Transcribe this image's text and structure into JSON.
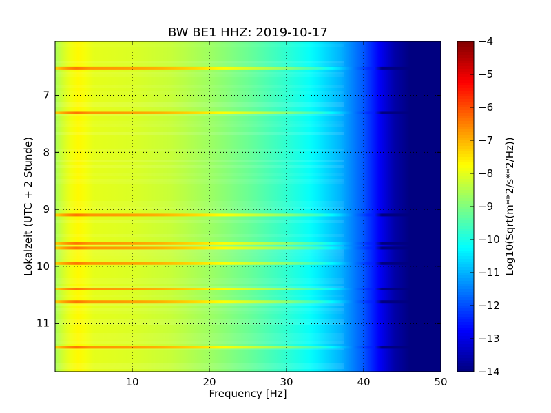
{
  "chart_data": {
    "type": "heatmap",
    "title": "BW BE1 HHZ: 2019-10-17",
    "xlabel": "Frequency [Hz]",
    "ylabel": "Lokalzeit (UTC + 2 Stunde)",
    "colorbar_label": "Log10(Sqrt(m**2/s**2/Hz))",
    "x_range": [
      0,
      50
    ],
    "y_range": [
      6.05,
      11.85
    ],
    "y_inverted": true,
    "clim": [
      -14,
      -4
    ],
    "colormap": "jet",
    "grid": true,
    "x_ticks": [
      10,
      20,
      30,
      40,
      50
    ],
    "y_ticks": [
      7,
      8,
      9,
      10,
      11
    ],
    "colorbar_ticks": [
      -4,
      -5,
      -6,
      -7,
      -8,
      -9,
      -10,
      -11,
      -12,
      -13,
      -14
    ],
    "x_tick_labels": [
      "10",
      "20",
      "30",
      "40",
      "50"
    ],
    "y_tick_labels": [
      "7",
      "8",
      "9",
      "10",
      "11"
    ],
    "colorbar_tick_labels": [
      "−4",
      "−5",
      "−6",
      "−7",
      "−8",
      "−9",
      "−10",
      "−11",
      "−12",
      "−13",
      "−14"
    ],
    "frequency_profile": {
      "frequency_hz": [
        0,
        1,
        2,
        3,
        5,
        10,
        15,
        20,
        25,
        30,
        33,
        35,
        37,
        40,
        42,
        44,
        46,
        50
      ],
      "log10_amplitude": [
        -8.6,
        -8.2,
        -7.9,
        -7.7,
        -8.0,
        -8.1,
        -8.3,
        -8.7,
        -9.2,
        -9.8,
        -10.2,
        -10.6,
        -11.0,
        -11.9,
        -12.8,
        -13.6,
        -14,
        -14
      ]
    },
    "broadband_events_hour": [
      6.52,
      7.3,
      9.1,
      9.6,
      9.68,
      9.95,
      10.4,
      10.62,
      11.42
    ]
  }
}
